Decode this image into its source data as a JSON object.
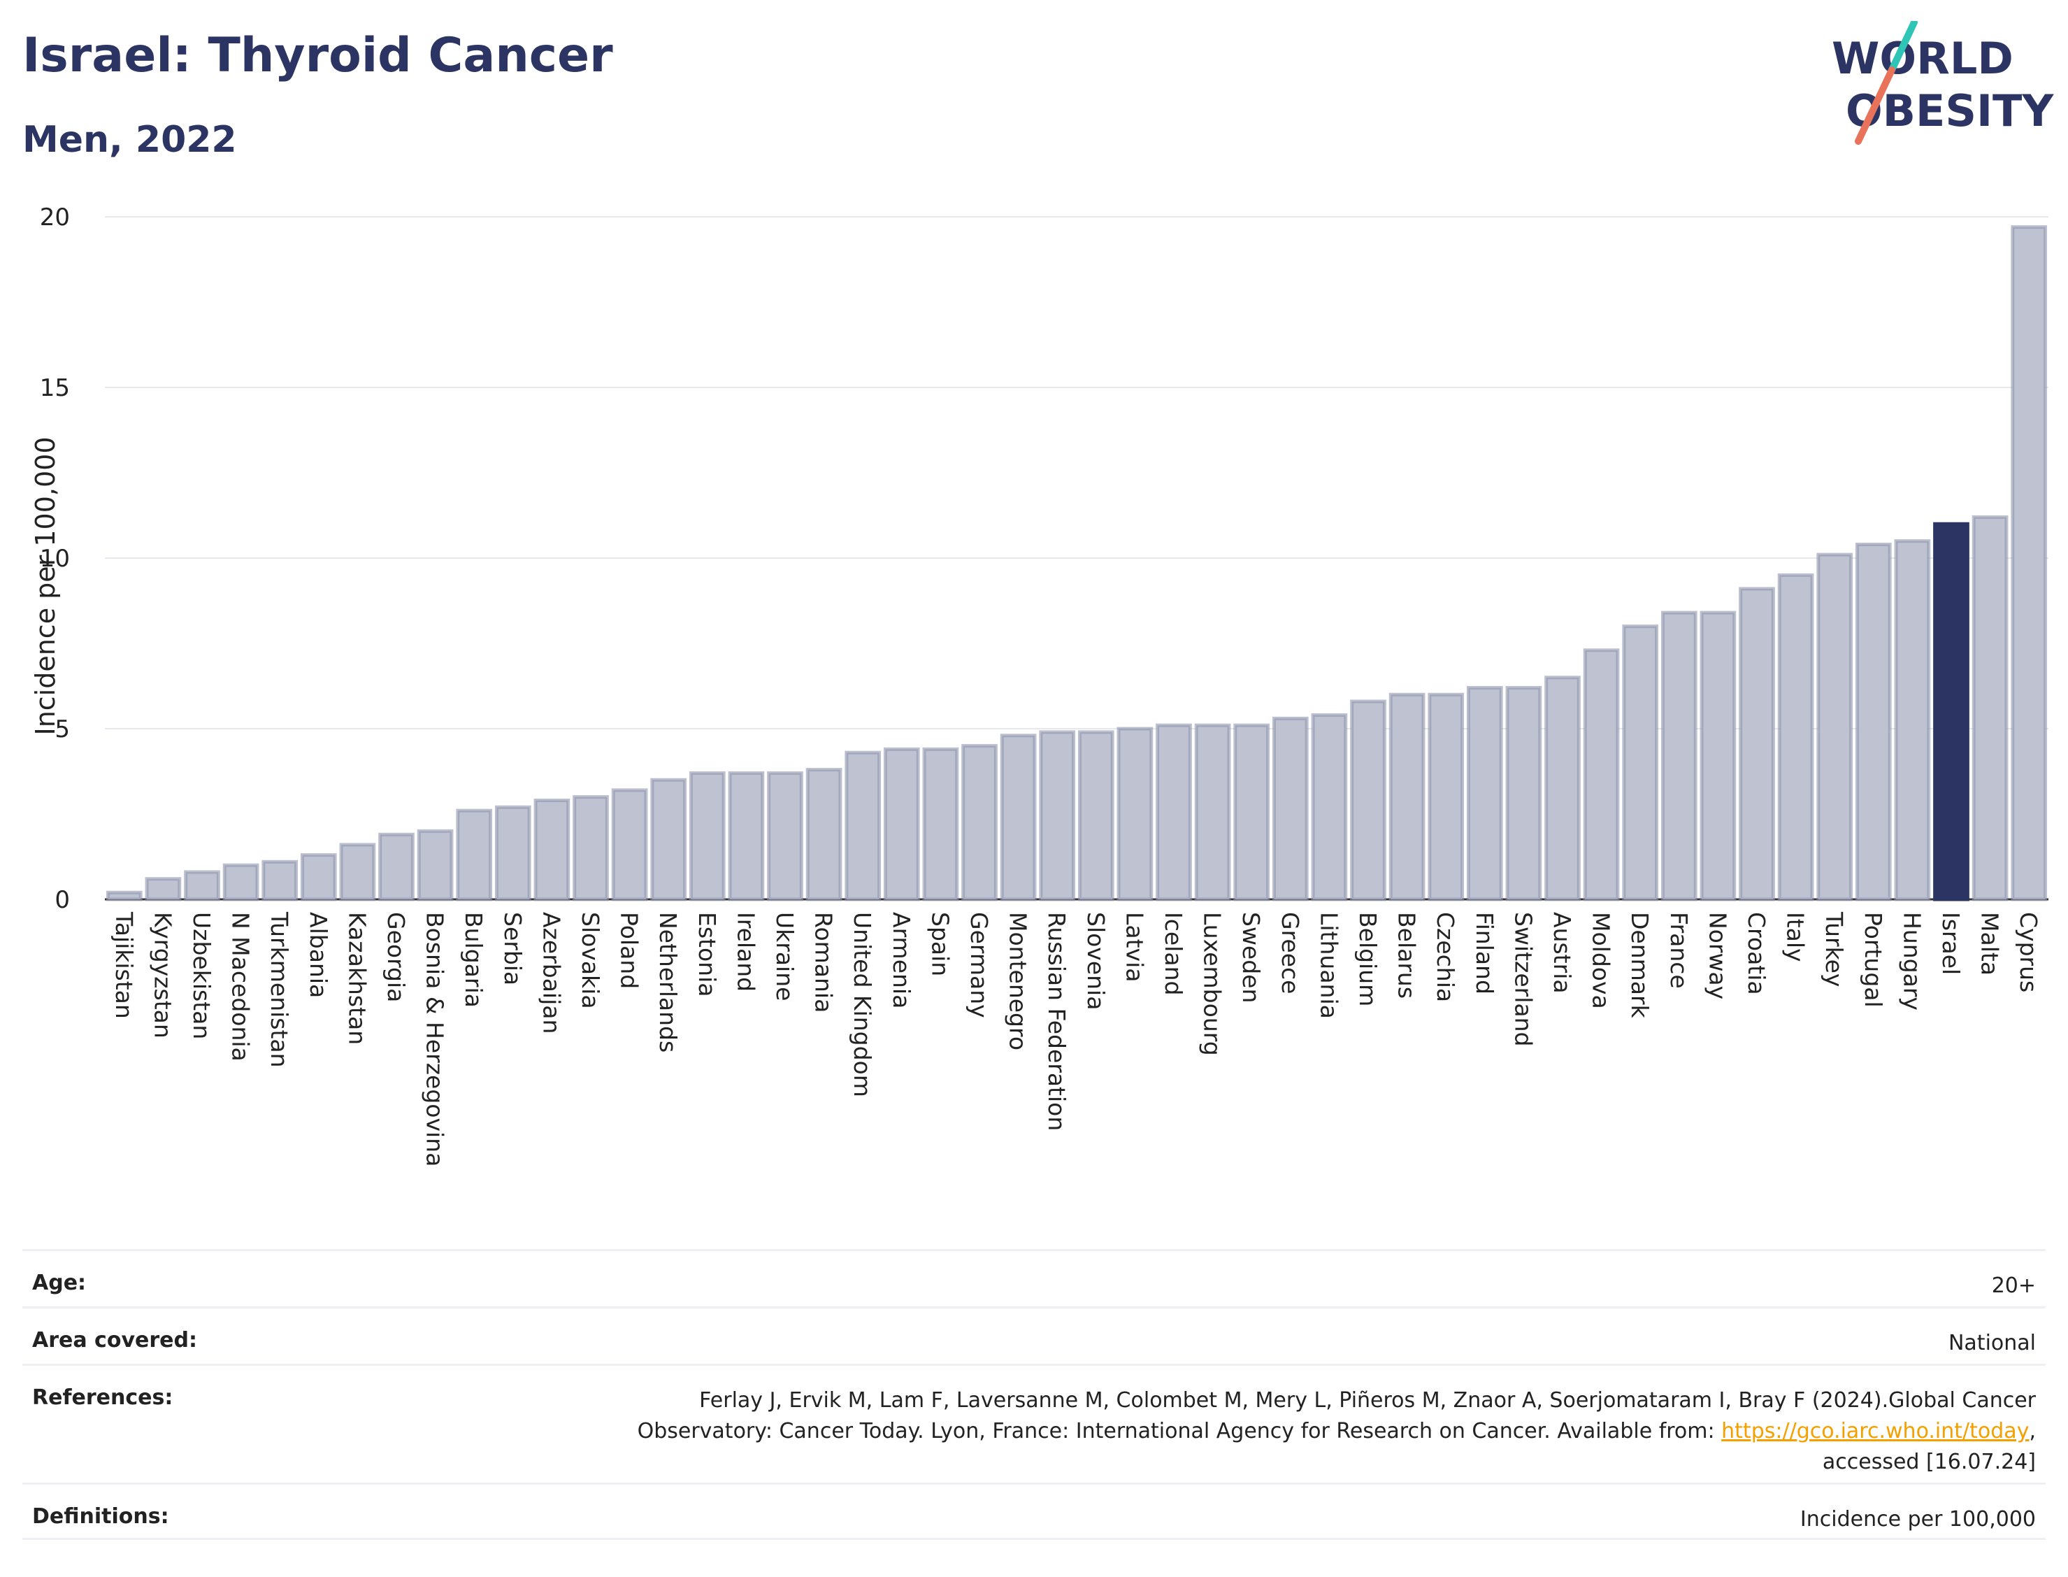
{
  "header": {
    "title": "Israel: Thyroid Cancer",
    "subtitle": "Men, 2022"
  },
  "logo": {
    "line1": "WORLD",
    "line2": "OBESITY",
    "accent_colors": [
      "#2ec4b6",
      "#e8735a"
    ]
  },
  "colors": {
    "bar": "#bfc3d1",
    "bar_stroke": "#8f96ad",
    "highlight": "#2b3462",
    "text": "#222222",
    "title": "#2b3462",
    "grid": "#e6e8ee"
  },
  "chart_data": {
    "type": "bar",
    "ylabel": "Incidence per 100,000",
    "ylim": [
      0,
      20
    ],
    "yticks": [
      0,
      5,
      10,
      15,
      20
    ],
    "highlight": "Israel",
    "grid": true,
    "categories": [
      "Tajikistan",
      "Kyrgyzstan",
      "Uzbekistan",
      "N Macedonia",
      "Turkmenistan",
      "Albania",
      "Kazakhstan",
      "Georgia",
      "Bosnia & Herzegovina",
      "Bulgaria",
      "Serbia",
      "Azerbaijan",
      "Slovakia",
      "Poland",
      "Netherlands",
      "Estonia",
      "Ireland",
      "Ukraine",
      "Romania",
      "United Kingdom",
      "Armenia",
      "Spain",
      "Germany",
      "Montenegro",
      "Russian Federation",
      "Slovenia",
      "Latvia",
      "Iceland",
      "Luxembourg",
      "Sweden",
      "Greece",
      "Lithuania",
      "Belgium",
      "Belarus",
      "Czechia",
      "Finland",
      "Switzerland",
      "Austria",
      "Moldova",
      "Denmark",
      "France",
      "Norway",
      "Croatia",
      "Italy",
      "Turkey",
      "Portugal",
      "Hungary",
      "Israel",
      "Malta",
      "Cyprus"
    ],
    "values": [
      0.2,
      0.6,
      0.8,
      1.0,
      1.1,
      1.3,
      1.6,
      1.9,
      2.0,
      2.6,
      2.7,
      2.9,
      3.0,
      3.2,
      3.5,
      3.7,
      3.7,
      3.7,
      3.8,
      4.3,
      4.4,
      4.4,
      4.5,
      4.8,
      4.9,
      4.9,
      5.0,
      5.1,
      5.1,
      5.1,
      5.3,
      5.4,
      5.8,
      6.0,
      6.0,
      6.2,
      6.2,
      6.5,
      7.3,
      8.0,
      8.4,
      8.4,
      9.1,
      9.5,
      10.1,
      10.4,
      10.5,
      11.0,
      11.2,
      19.7
    ]
  },
  "info": {
    "age_label": "Age:",
    "age_value": "20+",
    "area_label": "Area covered:",
    "area_value": "National",
    "ref_label": "References:",
    "ref_line1": "Ferlay J, Ervik M, Lam F, Laversanne M, Colombet M, Mery L, Piñeros M, Znaor A, Soerjomataram I, Bray F (2024).Global Cancer",
    "ref_line2_pre": "Observatory: Cancer Today. Lyon, France: International Agency for Research on Cancer. Available from: ",
    "ref_link": "https://gco.iarc.who.int/today",
    "ref_line2_post": ",",
    "ref_line3": "accessed [16.07.24]",
    "def_label": "Definitions:",
    "def_value": "Incidence per 100,000"
  }
}
